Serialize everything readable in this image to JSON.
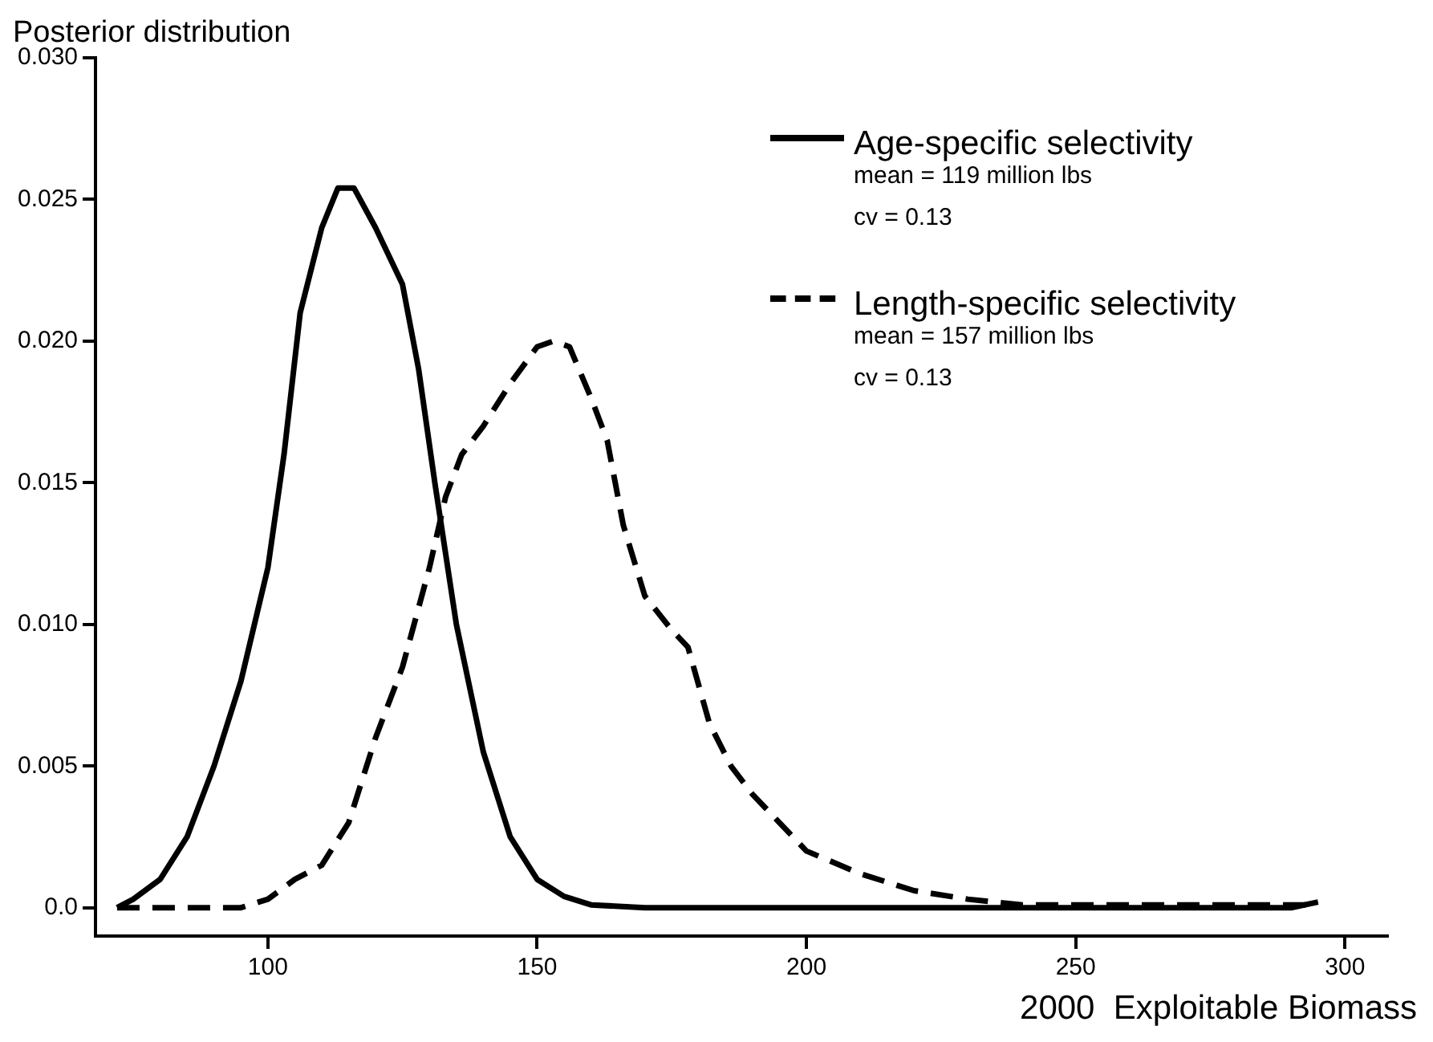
{
  "chart_data": {
    "type": "line",
    "ylabel": "Posterior distribution",
    "xlabel": "2000  Exploitable Biomass",
    "annotations": [
      "mean = 119 million lbs",
      "cv = 0.13",
      "mean = 157 million lbs",
      "cv = 0.13"
    ],
    "series": [
      {
        "name": "Age-specific selectivity",
        "color": "#000000",
        "line_style": "solid",
        "x": [
          72,
          75,
          80,
          85,
          90,
          95,
          100,
          103,
          106,
          110,
          113,
          116,
          120,
          125,
          128,
          131,
          135,
          140,
          145,
          150,
          155,
          160,
          170,
          200,
          250,
          290,
          295
        ],
        "values": [
          0,
          0.0003,
          0.001,
          0.0025,
          0.005,
          0.008,
          0.012,
          0.016,
          0.021,
          0.024,
          0.0254,
          0.0254,
          0.024,
          0.022,
          0.019,
          0.015,
          0.01,
          0.0055,
          0.0025,
          0.001,
          0.0004,
          0.0001,
          0,
          0,
          0,
          0,
          0.0002
        ]
      },
      {
        "name": "Length-specific selectivity",
        "color": "#000000",
        "line_style": "dashed",
        "x": [
          72,
          95,
          100,
          105,
          110,
          115,
          120,
          125,
          130,
          133,
          136,
          140,
          145,
          150,
          153,
          156,
          160,
          163,
          166,
          170,
          175,
          178,
          182,
          186,
          190,
          195,
          200,
          210,
          220,
          230,
          240,
          295
        ],
        "values": [
          0,
          0,
          0.0003,
          0.001,
          0.0015,
          0.003,
          0.006,
          0.0085,
          0.012,
          0.0145,
          0.016,
          0.017,
          0.0185,
          0.0198,
          0.02,
          0.0198,
          0.018,
          0.0165,
          0.0135,
          0.011,
          0.0098,
          0.0092,
          0.0065,
          0.005,
          0.004,
          0.003,
          0.002,
          0.0012,
          0.0006,
          0.0003,
          0.0001,
          0.0001
        ]
      }
    ],
    "xlim": [
      68,
      308
    ],
    "xticks": [
      100,
      150,
      200,
      250,
      300
    ],
    "ylim": [
      -0.001,
      0.03
    ],
    "yticks": [
      {
        "value": 0,
        "label": "0.0"
      },
      0.005,
      {
        "value": 0.01,
        "label": "0.010"
      },
      0.015,
      {
        "value": 0.02,
        "label": "0.020"
      },
      0.025,
      {
        "value": 0.03,
        "label": "0.030"
      }
    ],
    "grid": false,
    "legend": "top right",
    "marker": "none"
  }
}
